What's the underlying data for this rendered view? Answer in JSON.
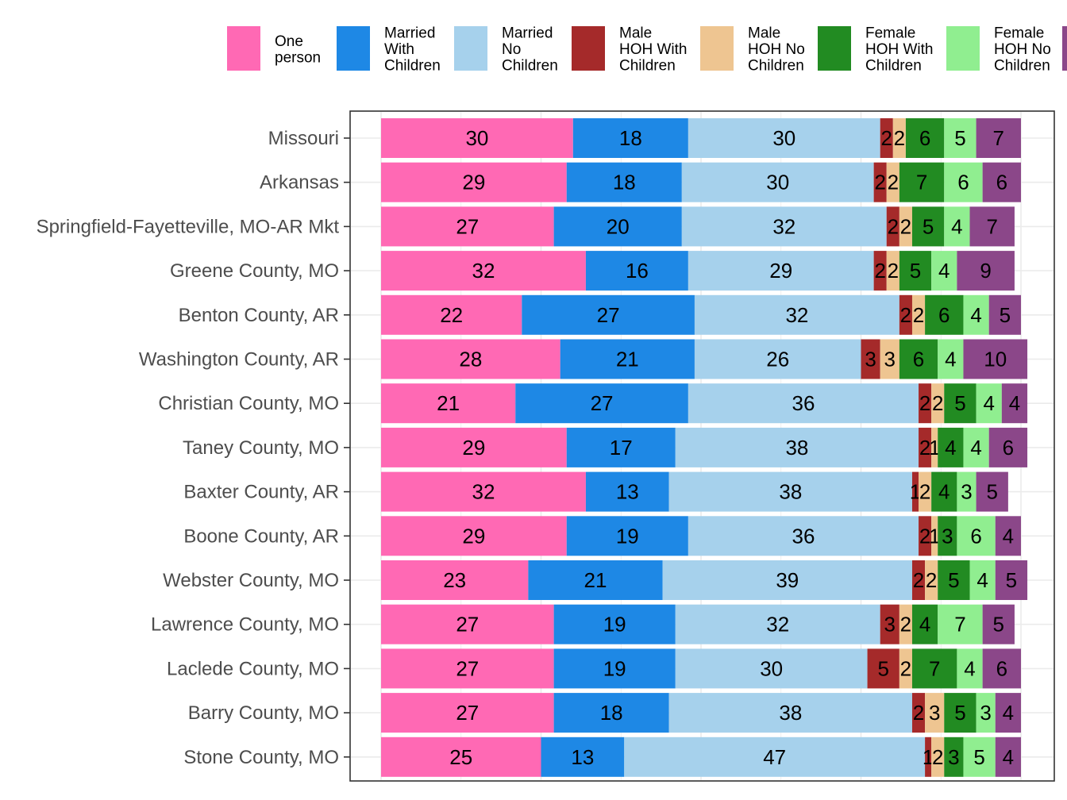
{
  "chart_data": {
    "type": "bar",
    "orientation": "horizontal",
    "stacked": true,
    "title": "",
    "xlabel": "",
    "ylabel": "",
    "xlim": [
      0,
      100
    ],
    "grid": true,
    "legend_position": "top",
    "categories": [
      "Missouri",
      "Arkansas",
      "Springfield-Fayetteville, MO-AR Mkt",
      "Greene County, MO",
      "Benton County, AR",
      "Washington County, AR",
      "Christian County, MO",
      "Taney County, MO",
      "Baxter County, AR",
      "Boone County, AR",
      "Webster County, MO",
      "Lawrence County, MO",
      "Laclede County, MO",
      "Barry County, MO",
      "Stone County, MO"
    ],
    "series": [
      {
        "legend": [
          "One",
          "person"
        ],
        "color": "#ff69b4",
        "values": [
          30,
          29,
          27,
          32,
          22,
          28,
          21,
          29,
          32,
          29,
          23,
          27,
          27,
          27,
          25
        ]
      },
      {
        "legend": [
          "Married",
          "With",
          "Children"
        ],
        "color": "#1e88e5",
        "values": [
          18,
          18,
          20,
          16,
          27,
          21,
          27,
          17,
          13,
          19,
          21,
          19,
          19,
          18,
          13
        ]
      },
      {
        "legend": [
          "Married",
          "No",
          "Children"
        ],
        "color": "#a6d1ec",
        "values": [
          30,
          30,
          32,
          29,
          32,
          26,
          36,
          38,
          38,
          36,
          39,
          32,
          30,
          38,
          47
        ]
      },
      {
        "legend": [
          "Male",
          "HOH With",
          "Children"
        ],
        "color": "#a52a2a",
        "values": [
          2,
          2,
          2,
          2,
          2,
          3,
          2,
          2,
          1,
          2,
          2,
          3,
          5,
          2,
          1
        ]
      },
      {
        "legend": [
          "Male",
          "HOH No",
          "Children"
        ],
        "color": "#eec591",
        "values": [
          2,
          2,
          2,
          2,
          2,
          3,
          2,
          1,
          2,
          1,
          2,
          2,
          2,
          3,
          2
        ]
      },
      {
        "legend": [
          "Female",
          "HOH With",
          "Children"
        ],
        "color": "#228b22",
        "values": [
          6,
          7,
          5,
          5,
          6,
          6,
          5,
          4,
          4,
          3,
          5,
          4,
          7,
          5,
          3
        ]
      },
      {
        "legend": [
          "Female",
          "HOH No",
          "Children"
        ],
        "color": "#90ee90",
        "values": [
          5,
          6,
          4,
          4,
          4,
          4,
          4,
          4,
          3,
          6,
          4,
          7,
          4,
          3,
          5
        ]
      },
      {
        "legend": [],
        "color": "#8b4789",
        "values": [
          7,
          6,
          7,
          9,
          5,
          10,
          4,
          6,
          5,
          4,
          5,
          5,
          6,
          4,
          4
        ]
      }
    ]
  }
}
